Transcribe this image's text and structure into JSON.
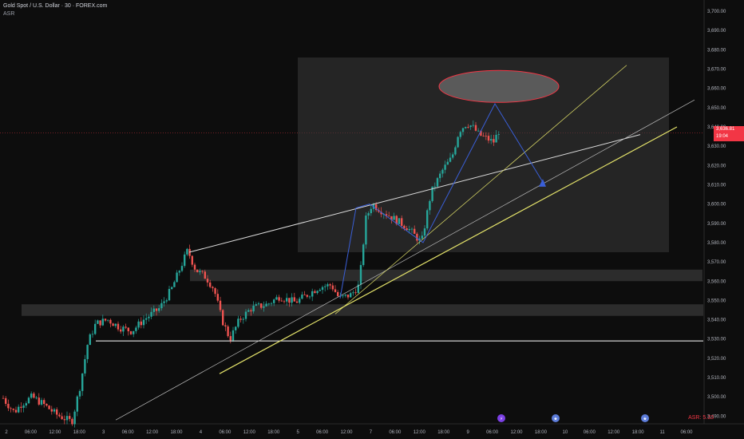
{
  "header": {
    "title": "Gold Spot / U.S. Dollar · 30 · FOREX.com",
    "indicator": "ASR"
  },
  "price_tag": {
    "price": "3,636.81",
    "countdown": "19:04"
  },
  "asr_readout": "ASR: 5.33",
  "colors": {
    "background": "#0d0d0d",
    "bull": "#26a69a",
    "bear": "#ef5350",
    "yellow": "#e4e36a",
    "zone": "#3a3a3a",
    "ellipse_fill": "#5a5a5a",
    "ellipse_stroke": "#f23645",
    "pattern": "#3a5fd8"
  },
  "icons": [
    "lightning-icon",
    "us-flag-icon",
    "us-flag-icon"
  ],
  "chart_data": {
    "type": "candlestick",
    "ylim": [
      3486,
      3705
    ],
    "y_ticks": [
      3490,
      3500,
      3510,
      3520,
      3530,
      3540,
      3550,
      3560,
      3570,
      3580,
      3590,
      3600,
      3610,
      3620,
      3630,
      3640,
      3650,
      3660,
      3670,
      3680,
      3690,
      3700
    ],
    "x_ticks": [
      "2",
      "06:00",
      "12:00",
      "18:00",
      "3",
      "06:00",
      "12:00",
      "18:00",
      "4",
      "06:00",
      "12:00",
      "18:00",
      "5",
      "06:00",
      "12:00",
      "7",
      "06:00",
      "12:00",
      "18:00",
      "9",
      "06:00",
      "12:00",
      "18:00",
      "10",
      "06:00",
      "12:00",
      "18:00",
      "11",
      "06:00"
    ],
    "current_price": 3636.81
  }
}
